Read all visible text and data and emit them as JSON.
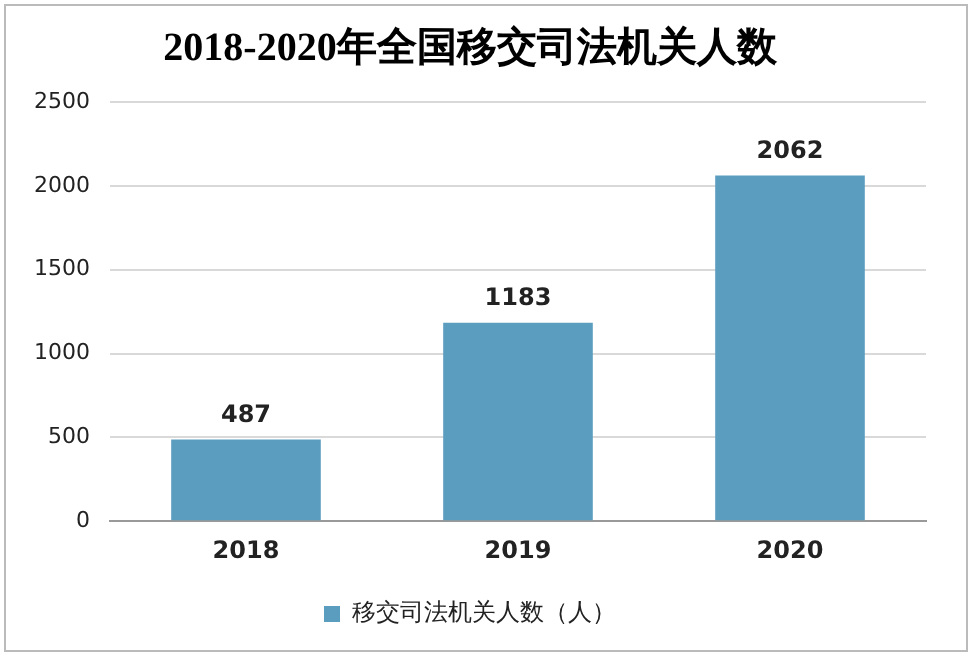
{
  "chart_data": {
    "type": "bar",
    "title": "2018-2020年全国移交司法机关人数",
    "categories": [
      "2018",
      "2019",
      "2020"
    ],
    "series": [
      {
        "name": "移交司法机关人数（人）",
        "color": "#5a9dbf",
        "values": [
          487,
          1183,
          2062
        ]
      }
    ],
    "ylim": [
      0,
      2500
    ],
    "yticks": [
      0,
      500,
      1000,
      1500,
      2000,
      2500
    ],
    "grid": "y",
    "legend": "bottom",
    "data_labels": true
  }
}
